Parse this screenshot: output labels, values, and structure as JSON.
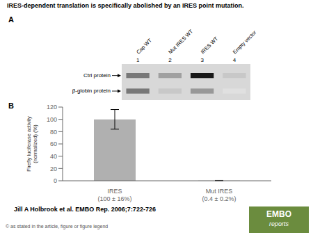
{
  "chart_data": [
    {
      "type": "gel",
      "title": "IRES-dependent translation is specifically abolished by an IRES point mutation.",
      "annotations": [
        {
          "text": "A"
        }
      ],
      "categories": [
        "Cap WT",
        "Mut IRES WT",
        "IRES WT",
        "Empty vector"
      ],
      "x": [
        "1",
        "2",
        "3",
        "4"
      ],
      "color": "#d8d8d8",
      "series": [
        {
          "name": "Ctrl protein",
          "colors": [
            "#787878",
            "#a0a0a0",
            "#181818",
            "#c8c8c8"
          ]
        },
        {
          "name": "β-globin protein",
          "colors": [
            "#787878",
            "#c8c8c8",
            "#989898",
            "#e0e0e0"
          ]
        }
      ]
    },
    {
      "type": "bar",
      "annotations": [
        {
          "text": "B"
        },
        {
          "text": "Jill A Holbrook et al. EMBO Rep. 2006;7:722-726"
        },
        {
          "text": "© as stated in the article, figure or figure legend"
        },
        {
          "text": "EMBO",
          "color": "#6b8c3e"
        },
        {
          "text": "reports",
          "color": "#6b8c3e"
        }
      ],
      "categories": [
        "IRES\n(100 ± 16%)",
        "Mut IRES\n(0.4 ± 0.2%)"
      ],
      "values": [
        100,
        0.4
      ],
      "errors": [
        16,
        0.2
      ],
      "color": "#b0b0b0",
      "ylabel": "Firefly luciferase activity\n(normalized) (%)",
      "ylim": [
        0,
        120
      ],
      "yticks": [
        0,
        20,
        40,
        60,
        80,
        100,
        120
      ],
      "grid": false
    }
  ]
}
